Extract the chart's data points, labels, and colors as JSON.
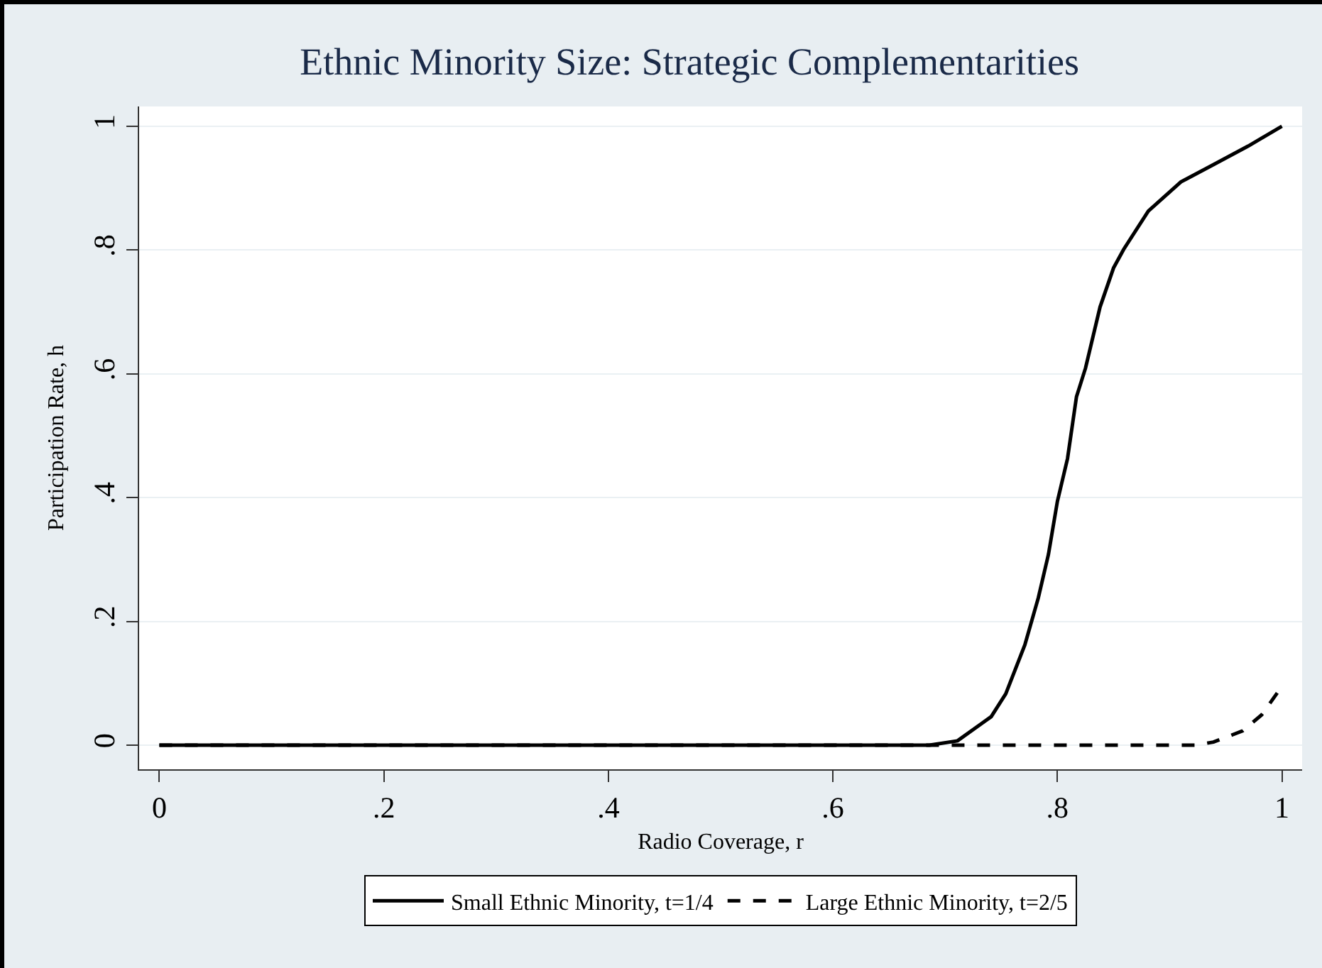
{
  "chart_data": {
    "type": "line",
    "title": "Ethnic Minority Size: Strategic Complementarities",
    "xlabel": "Radio Coverage, r",
    "ylabel": "Participation Rate, h",
    "xlim": [
      -0.018,
      1.018
    ],
    "ylim": [
      -0.039,
      1.032
    ],
    "xticks": [
      {
        "value": 0,
        "label": "0"
      },
      {
        "value": 0.2,
        "label": ".2"
      },
      {
        "value": 0.4,
        "label": ".4"
      },
      {
        "value": 0.6,
        "label": ".6"
      },
      {
        "value": 0.8,
        "label": ".8"
      },
      {
        "value": 1,
        "label": "1"
      }
    ],
    "yticks": [
      {
        "value": 0,
        "label": "0"
      },
      {
        "value": 0.2,
        "label": ".2"
      },
      {
        "value": 0.4,
        "label": ".4"
      },
      {
        "value": 0.6,
        "label": ".6"
      },
      {
        "value": 0.8,
        "label": ".8"
      },
      {
        "value": 1,
        "label": "1"
      }
    ],
    "grid": "y",
    "legend": "bottom",
    "series": [
      {
        "name": "Small Ethnic Minority, t=1/4",
        "color": "#000000",
        "line_style": "solid",
        "x": [
          0,
          0.2,
          0.4,
          0.6,
          0.686,
          0.711,
          0.741,
          0.754,
          0.771,
          0.783,
          0.792,
          0.8,
          0.809,
          0.817,
          0.825,
          0.838,
          0.85,
          0.859,
          0.881,
          0.91,
          0.939,
          0.97,
          1
        ],
        "values": [
          0,
          0,
          0,
          0,
          0,
          0.007,
          0.046,
          0.083,
          0.162,
          0.238,
          0.308,
          0.394,
          0.463,
          0.563,
          0.609,
          0.708,
          0.771,
          0.801,
          0.863,
          0.91,
          0.938,
          0.968,
          1
        ]
      },
      {
        "name": "Large Ethnic Minority, t=2/5",
        "color": "#000000",
        "line_style": "dashed",
        "x": [
          0,
          0.2,
          0.4,
          0.6,
          0.8,
          0.923,
          0.939,
          0.965,
          0.982,
          1
        ],
        "values": [
          0,
          0,
          0,
          0,
          0,
          0,
          0.005,
          0.023,
          0.049,
          0.095
        ]
      }
    ]
  }
}
